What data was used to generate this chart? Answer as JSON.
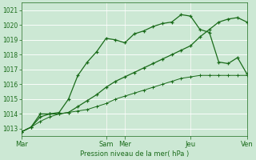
{
  "background_color": "#cce8d4",
  "grid_color": "#aaccbb",
  "line_color": "#1a6b1a",
  "xlabel": "Pression niveau de la mer( hPa )",
  "ylim": [
    1012.5,
    1021.5
  ],
  "yticks": [
    1013,
    1014,
    1015,
    1016,
    1017,
    1018,
    1019,
    1020,
    1021
  ],
  "xlim": [
    0,
    24
  ],
  "xtick_labels": [
    "Mar",
    "Sam",
    "Mer",
    "Jeu",
    "Ven"
  ],
  "xtick_positions": [
    0,
    9,
    11,
    18,
    24
  ],
  "series1_x": [
    0,
    1,
    2,
    3,
    4,
    5,
    6,
    7,
    8,
    9,
    10,
    11,
    12,
    13,
    14,
    15,
    16,
    17,
    18,
    19,
    20,
    21,
    22,
    23,
    24
  ],
  "series1_y": [
    1012.8,
    1013.1,
    1014.0,
    1014.0,
    1014.1,
    1015.0,
    1016.6,
    1017.5,
    1018.2,
    1019.1,
    1019.0,
    1018.8,
    1019.4,
    1019.6,
    1019.9,
    1020.1,
    1020.2,
    1020.7,
    1020.6,
    1019.7,
    1019.5,
    1017.5,
    1017.4,
    1017.8,
    1016.7
  ],
  "series2_x": [
    0,
    1,
    2,
    3,
    4,
    5,
    6,
    7,
    8,
    9,
    10,
    11,
    12,
    13,
    14,
    15,
    16,
    17,
    18,
    19,
    20,
    21,
    22,
    23,
    24
  ],
  "series2_y": [
    1012.8,
    1013.1,
    1013.8,
    1014.0,
    1014.0,
    1014.1,
    1014.5,
    1014.9,
    1015.3,
    1015.8,
    1016.2,
    1016.5,
    1016.8,
    1017.1,
    1017.4,
    1017.7,
    1018.0,
    1018.3,
    1018.6,
    1019.2,
    1019.7,
    1020.2,
    1020.4,
    1020.5,
    1020.2
  ],
  "series3_x": [
    0,
    1,
    2,
    3,
    4,
    5,
    6,
    7,
    8,
    9,
    10,
    11,
    12,
    13,
    14,
    15,
    16,
    17,
    18,
    19,
    20,
    21,
    22,
    23,
    24
  ],
  "series3_y": [
    1012.8,
    1013.1,
    1013.5,
    1013.8,
    1014.0,
    1014.1,
    1014.2,
    1014.3,
    1014.5,
    1014.7,
    1015.0,
    1015.2,
    1015.4,
    1015.6,
    1015.8,
    1016.0,
    1016.2,
    1016.4,
    1016.5,
    1016.6,
    1016.6,
    1016.6,
    1016.6,
    1016.6,
    1016.6
  ]
}
